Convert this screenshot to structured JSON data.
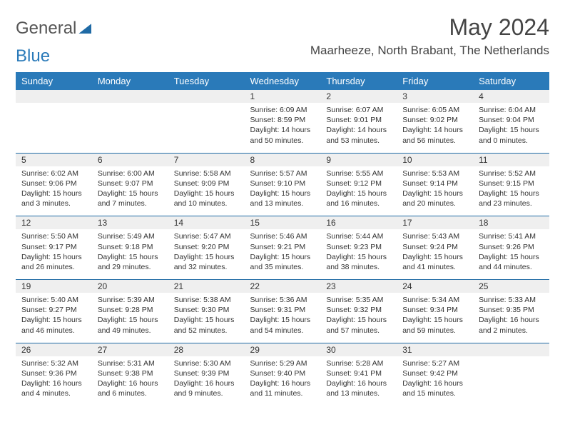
{
  "logo": {
    "text1": "General",
    "text2": "Blue"
  },
  "title": "May 2024",
  "location": "Maarheeze, North Brabant, The Netherlands",
  "colors": {
    "header_bg": "#2a7ab9",
    "daynum_bg": "#efefef",
    "border": "#1f6aa5"
  },
  "dayHeaders": [
    "Sunday",
    "Monday",
    "Tuesday",
    "Wednesday",
    "Thursday",
    "Friday",
    "Saturday"
  ],
  "weeks": [
    {
      "nums": [
        "",
        "",
        "",
        "1",
        "2",
        "3",
        "4"
      ],
      "cells": [
        null,
        null,
        null,
        {
          "sr": "Sunrise: 6:09 AM",
          "ss": "Sunset: 8:59 PM",
          "dl": "Daylight: 14 hours and 50 minutes."
        },
        {
          "sr": "Sunrise: 6:07 AM",
          "ss": "Sunset: 9:01 PM",
          "dl": "Daylight: 14 hours and 53 minutes."
        },
        {
          "sr": "Sunrise: 6:05 AM",
          "ss": "Sunset: 9:02 PM",
          "dl": "Daylight: 14 hours and 56 minutes."
        },
        {
          "sr": "Sunrise: 6:04 AM",
          "ss": "Sunset: 9:04 PM",
          "dl": "Daylight: 15 hours and 0 minutes."
        }
      ]
    },
    {
      "nums": [
        "5",
        "6",
        "7",
        "8",
        "9",
        "10",
        "11"
      ],
      "cells": [
        {
          "sr": "Sunrise: 6:02 AM",
          "ss": "Sunset: 9:06 PM",
          "dl": "Daylight: 15 hours and 3 minutes."
        },
        {
          "sr": "Sunrise: 6:00 AM",
          "ss": "Sunset: 9:07 PM",
          "dl": "Daylight: 15 hours and 7 minutes."
        },
        {
          "sr": "Sunrise: 5:58 AM",
          "ss": "Sunset: 9:09 PM",
          "dl": "Daylight: 15 hours and 10 minutes."
        },
        {
          "sr": "Sunrise: 5:57 AM",
          "ss": "Sunset: 9:10 PM",
          "dl": "Daylight: 15 hours and 13 minutes."
        },
        {
          "sr": "Sunrise: 5:55 AM",
          "ss": "Sunset: 9:12 PM",
          "dl": "Daylight: 15 hours and 16 minutes."
        },
        {
          "sr": "Sunrise: 5:53 AM",
          "ss": "Sunset: 9:14 PM",
          "dl": "Daylight: 15 hours and 20 minutes."
        },
        {
          "sr": "Sunrise: 5:52 AM",
          "ss": "Sunset: 9:15 PM",
          "dl": "Daylight: 15 hours and 23 minutes."
        }
      ]
    },
    {
      "nums": [
        "12",
        "13",
        "14",
        "15",
        "16",
        "17",
        "18"
      ],
      "cells": [
        {
          "sr": "Sunrise: 5:50 AM",
          "ss": "Sunset: 9:17 PM",
          "dl": "Daylight: 15 hours and 26 minutes."
        },
        {
          "sr": "Sunrise: 5:49 AM",
          "ss": "Sunset: 9:18 PM",
          "dl": "Daylight: 15 hours and 29 minutes."
        },
        {
          "sr": "Sunrise: 5:47 AM",
          "ss": "Sunset: 9:20 PM",
          "dl": "Daylight: 15 hours and 32 minutes."
        },
        {
          "sr": "Sunrise: 5:46 AM",
          "ss": "Sunset: 9:21 PM",
          "dl": "Daylight: 15 hours and 35 minutes."
        },
        {
          "sr": "Sunrise: 5:44 AM",
          "ss": "Sunset: 9:23 PM",
          "dl": "Daylight: 15 hours and 38 minutes."
        },
        {
          "sr": "Sunrise: 5:43 AM",
          "ss": "Sunset: 9:24 PM",
          "dl": "Daylight: 15 hours and 41 minutes."
        },
        {
          "sr": "Sunrise: 5:41 AM",
          "ss": "Sunset: 9:26 PM",
          "dl": "Daylight: 15 hours and 44 minutes."
        }
      ]
    },
    {
      "nums": [
        "19",
        "20",
        "21",
        "22",
        "23",
        "24",
        "25"
      ],
      "cells": [
        {
          "sr": "Sunrise: 5:40 AM",
          "ss": "Sunset: 9:27 PM",
          "dl": "Daylight: 15 hours and 46 minutes."
        },
        {
          "sr": "Sunrise: 5:39 AM",
          "ss": "Sunset: 9:28 PM",
          "dl": "Daylight: 15 hours and 49 minutes."
        },
        {
          "sr": "Sunrise: 5:38 AM",
          "ss": "Sunset: 9:30 PM",
          "dl": "Daylight: 15 hours and 52 minutes."
        },
        {
          "sr": "Sunrise: 5:36 AM",
          "ss": "Sunset: 9:31 PM",
          "dl": "Daylight: 15 hours and 54 minutes."
        },
        {
          "sr": "Sunrise: 5:35 AM",
          "ss": "Sunset: 9:32 PM",
          "dl": "Daylight: 15 hours and 57 minutes."
        },
        {
          "sr": "Sunrise: 5:34 AM",
          "ss": "Sunset: 9:34 PM",
          "dl": "Daylight: 15 hours and 59 minutes."
        },
        {
          "sr": "Sunrise: 5:33 AM",
          "ss": "Sunset: 9:35 PM",
          "dl": "Daylight: 16 hours and 2 minutes."
        }
      ]
    },
    {
      "nums": [
        "26",
        "27",
        "28",
        "29",
        "30",
        "31",
        ""
      ],
      "cells": [
        {
          "sr": "Sunrise: 5:32 AM",
          "ss": "Sunset: 9:36 PM",
          "dl": "Daylight: 16 hours and 4 minutes."
        },
        {
          "sr": "Sunrise: 5:31 AM",
          "ss": "Sunset: 9:38 PM",
          "dl": "Daylight: 16 hours and 6 minutes."
        },
        {
          "sr": "Sunrise: 5:30 AM",
          "ss": "Sunset: 9:39 PM",
          "dl": "Daylight: 16 hours and 9 minutes."
        },
        {
          "sr": "Sunrise: 5:29 AM",
          "ss": "Sunset: 9:40 PM",
          "dl": "Daylight: 16 hours and 11 minutes."
        },
        {
          "sr": "Sunrise: 5:28 AM",
          "ss": "Sunset: 9:41 PM",
          "dl": "Daylight: 16 hours and 13 minutes."
        },
        {
          "sr": "Sunrise: 5:27 AM",
          "ss": "Sunset: 9:42 PM",
          "dl": "Daylight: 16 hours and 15 minutes."
        },
        null
      ]
    }
  ]
}
